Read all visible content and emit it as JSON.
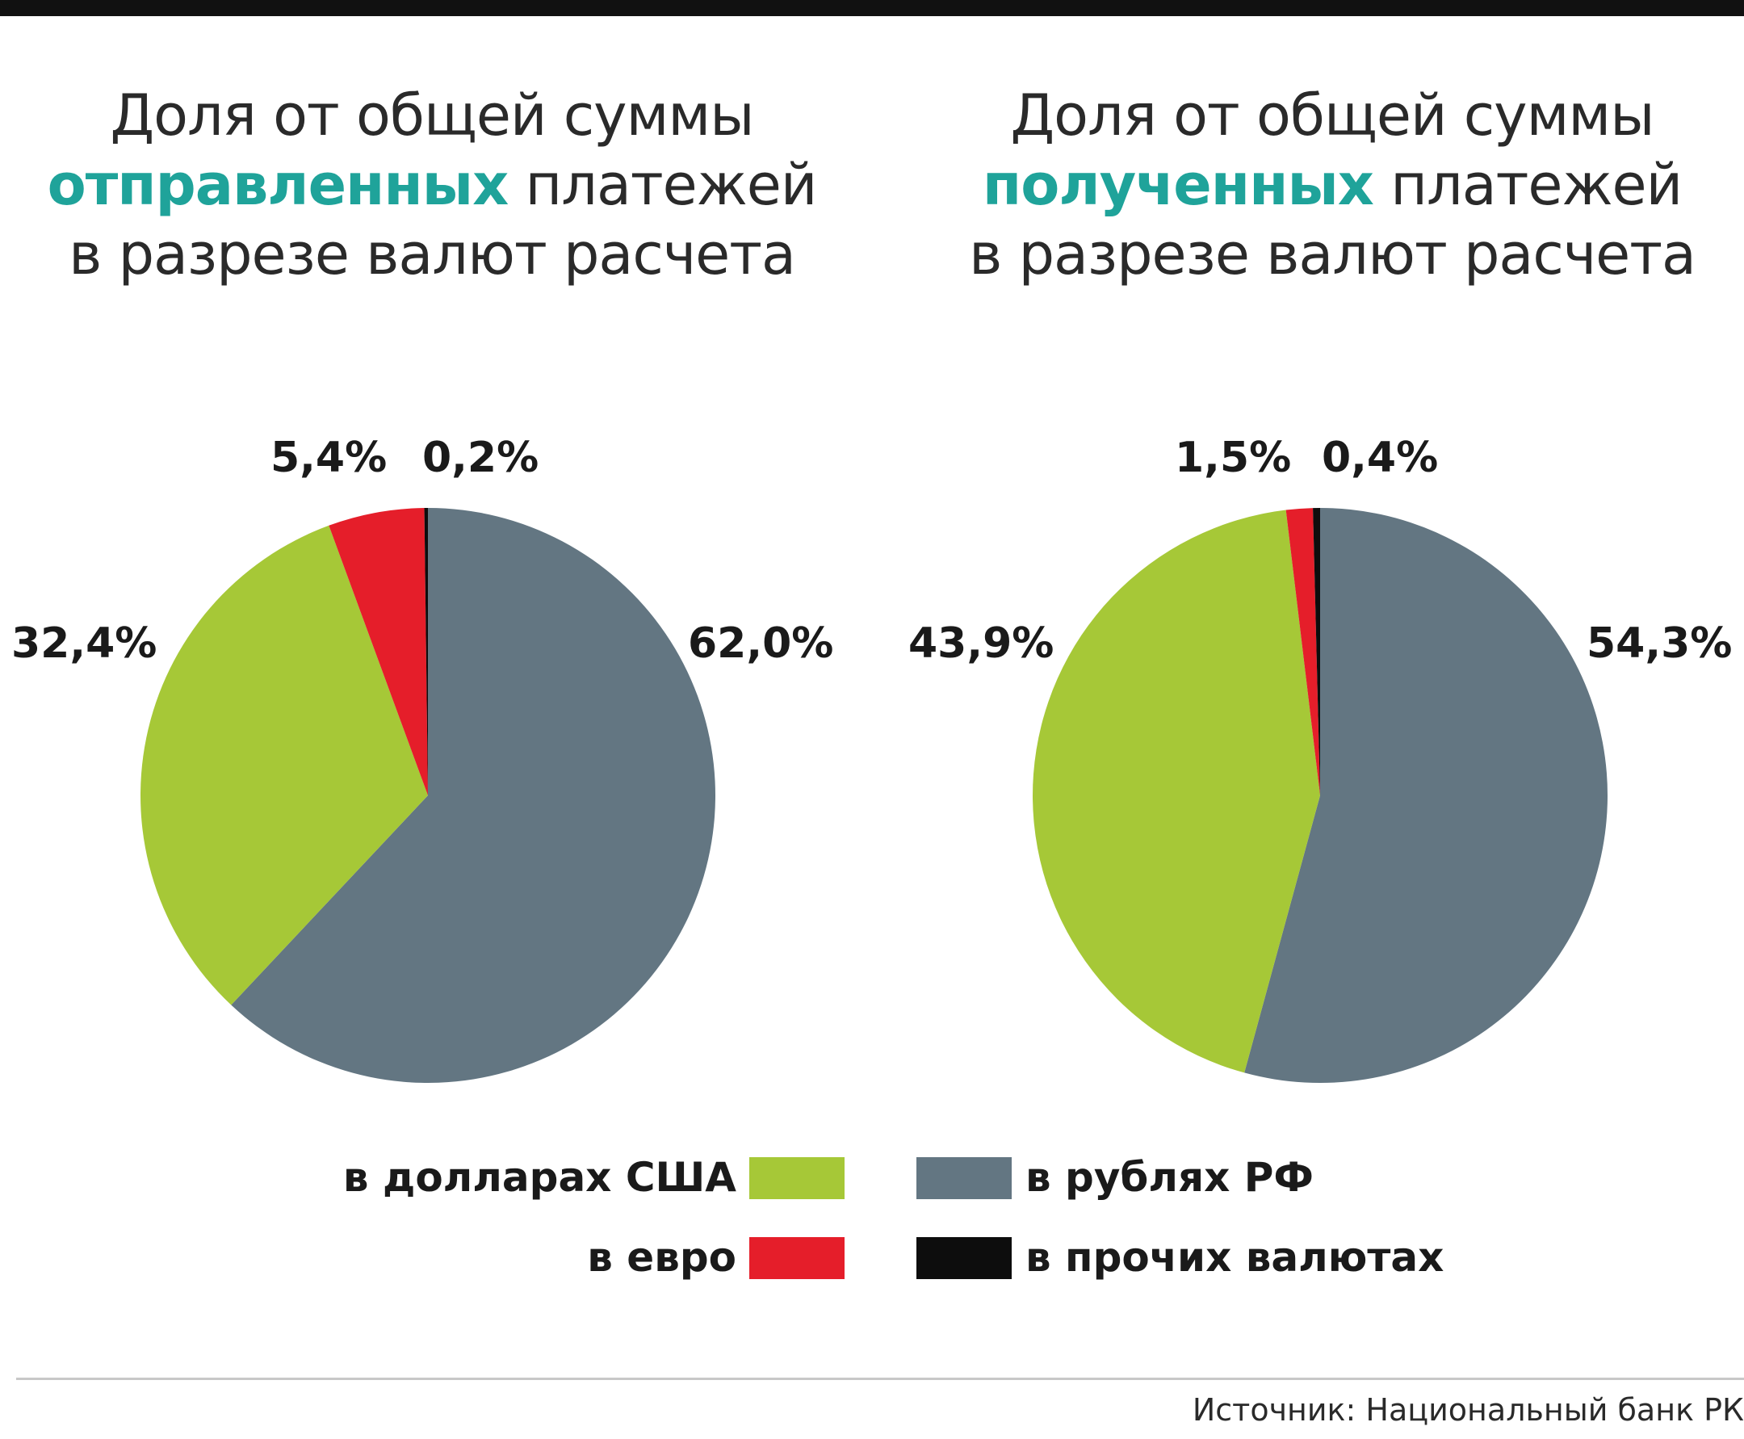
{
  "titles": {
    "left": {
      "line1": "Доля от общей суммы",
      "line2_accent": "отправленных",
      "line2_rest": " платежей",
      "line3": "в разрезе валют расчета"
    },
    "right": {
      "line1": "Доля от общей суммы",
      "line2_accent": "полученных",
      "line2_rest": " платежей",
      "line3": "в разрезе валют расчета"
    }
  },
  "colors": {
    "usd": "#a6c837",
    "rub": "#637682",
    "eur": "#e51e2a",
    "other": "#0d0d0d",
    "accent": "#1fa39a"
  },
  "chart_data": [
    {
      "type": "pie",
      "slices": [
        {
          "key": "rub",
          "label": "в рублях РФ",
          "value": 62.0,
          "value_label": "62,0%"
        },
        {
          "key": "usd",
          "label": "в долларах США",
          "value": 32.4,
          "value_label": "32,4%"
        },
        {
          "key": "eur",
          "label": "в евро",
          "value": 5.4,
          "value_label": "5,4%"
        },
        {
          "key": "other",
          "label": "в прочих валютах",
          "value": 0.2,
          "value_label": "0,2%"
        }
      ]
    },
    {
      "type": "pie",
      "slices": [
        {
          "key": "rub",
          "label": "в рублях РФ",
          "value": 54.3,
          "value_label": "54,3%"
        },
        {
          "key": "usd",
          "label": "в долларах США",
          "value": 43.9,
          "value_label": "43,9%"
        },
        {
          "key": "eur",
          "label": "в евро",
          "value": 1.5,
          "value_label": "1,5%"
        },
        {
          "key": "other",
          "label": "в прочих валютах",
          "value": 0.4,
          "value_label": "0,4%"
        }
      ]
    }
  ],
  "legend": {
    "usd": "в долларах США",
    "rub": "в рублях РФ",
    "eur": "в евро",
    "other": "в прочих валютах"
  },
  "source": "Источник: Национальный банк РК"
}
